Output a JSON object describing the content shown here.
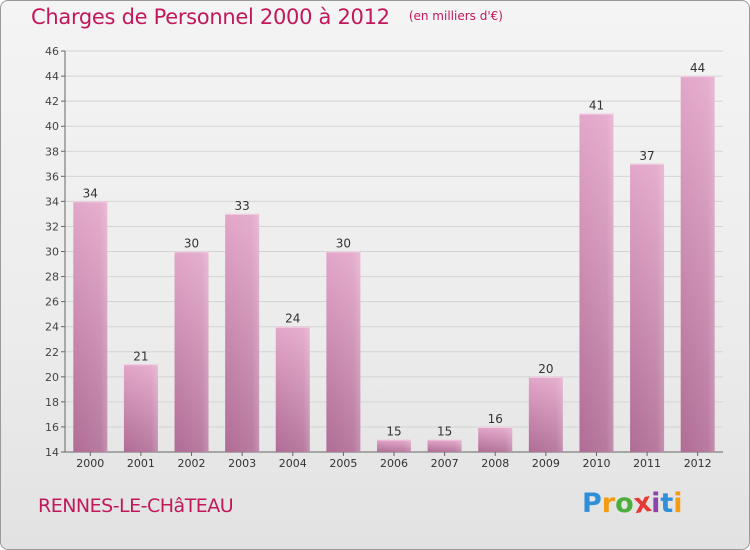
{
  "header": {
    "title": "Charges de Personnel 2000 à 2012",
    "subtitle": "(en milliers d'€)"
  },
  "footer": {
    "commune": "RENNES-LE-CHâTEAU",
    "brand": [
      "P",
      "r",
      "o",
      "x",
      "i",
      "t",
      "i"
    ]
  },
  "colors": {
    "bar": "#d98fba",
    "bar_dark": "#b56e98",
    "title": "#c2185b",
    "axis": "#555555"
  },
  "chart_data": {
    "type": "bar",
    "title": "Charges de Personnel 2000 à 2012",
    "subtitle": "(en milliers d'€)",
    "categories": [
      "2000",
      "2001",
      "2002",
      "2003",
      "2004",
      "2005",
      "2006",
      "2007",
      "2008",
      "2009",
      "2010",
      "2011",
      "2012"
    ],
    "values": [
      34,
      21,
      30,
      33,
      24,
      30,
      15,
      15,
      16,
      20,
      41,
      37,
      44
    ],
    "ylim": [
      14,
      46
    ],
    "yticks": [
      14,
      16,
      18,
      20,
      22,
      24,
      26,
      28,
      30,
      32,
      34,
      36,
      38,
      40,
      42,
      44,
      46
    ],
    "grid": true,
    "data_labels": true
  }
}
